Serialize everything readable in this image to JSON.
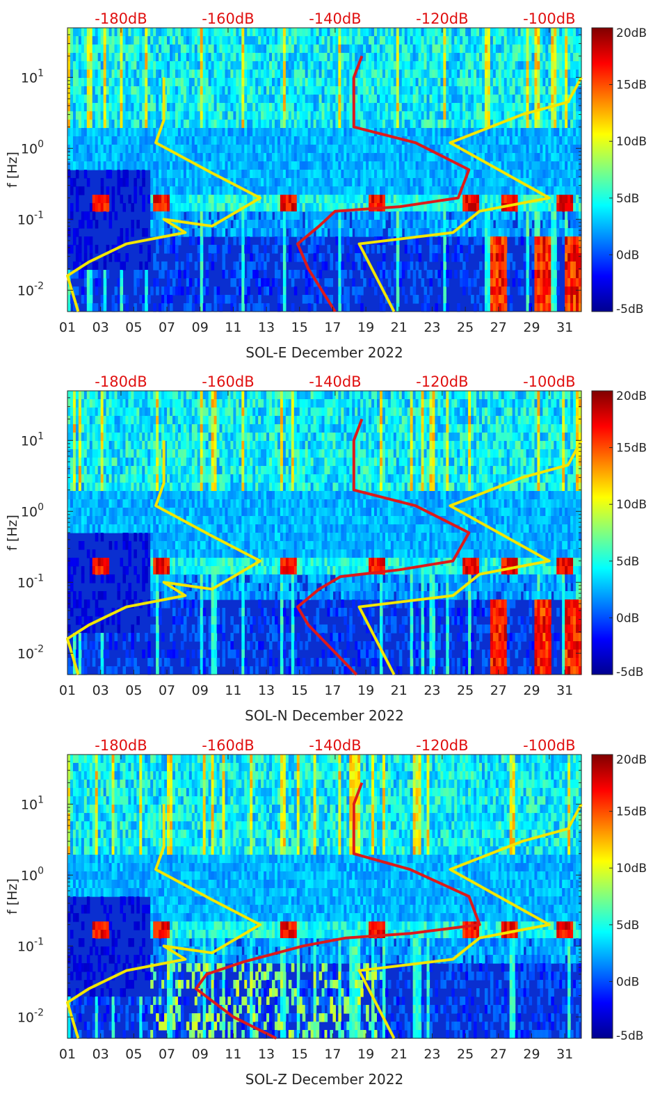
{
  "colors": {
    "noise_model_line": "#f2e600",
    "psd_line": "#dd1a1a",
    "top_axis_text": "#e01010",
    "colormap": [
      "#00008f",
      "#0000ff",
      "#0080ff",
      "#00ffff",
      "#80ff80",
      "#ffff00",
      "#ff8000",
      "#ff0000",
      "#800000"
    ]
  },
  "chart_data": [
    {
      "type": "heatmap",
      "panel": "SOL-E",
      "xlabel": "SOL-E December 2022",
      "ylabel": "f [Hz]",
      "x_range_days": [
        1,
        32
      ],
      "x_ticks": [
        "01",
        "03",
        "05",
        "07",
        "09",
        "11",
        "13",
        "15",
        "17",
        "19",
        "21",
        "23",
        "25",
        "27",
        "29",
        "31"
      ],
      "y_scale": "log",
      "ylim_hz": [
        0.005,
        50
      ],
      "y_ticks": [
        "10-2",
        "10-1",
        "100",
        "101"
      ],
      "top_axis": {
        "ticks": [
          "-180dB",
          "-160dB",
          "-140dB",
          "-120dB",
          "-100dB"
        ],
        "range_db": [
          -190,
          -94
        ]
      },
      "colorbar": {
        "range_db": [
          -5,
          20
        ],
        "ticks": [
          "-5dB",
          "0dB",
          "5dB",
          "10dB",
          "15dB",
          "20dB"
        ]
      },
      "lines": {
        "noise_model_low_db": [
          [
            -172,
            10
          ],
          [
            -172,
            2.5
          ],
          [
            -173.5,
            1.2
          ],
          [
            -163,
            0.45
          ],
          [
            -154,
            0.2
          ],
          [
            -163,
            0.08
          ],
          [
            -172,
            0.1
          ],
          [
            -168,
            0.065
          ],
          [
            -179,
            0.045
          ],
          [
            -186,
            0.025
          ],
          [
            -190,
            0.016
          ],
          [
            -188,
            0.005
          ]
        ],
        "noise_model_high_db": [
          [
            -94,
            10
          ],
          [
            -96.5,
            4.5
          ],
          [
            -105,
            3
          ],
          [
            -118.5,
            1.2
          ],
          [
            -100,
            0.2
          ],
          [
            -113,
            0.13
          ],
          [
            -118,
            0.065
          ],
          [
            -135.5,
            0.045
          ],
          [
            -129,
            0.005
          ]
        ],
        "psd_db": [
          [
            -135,
            20
          ],
          [
            -136.5,
            10
          ],
          [
            -136.5,
            2
          ],
          [
            -125,
            1.2
          ],
          [
            -115,
            0.5
          ],
          [
            -117,
            0.2
          ],
          [
            -128,
            0.15
          ],
          [
            -140,
            0.13
          ],
          [
            -143,
            0.08
          ],
          [
            -147,
            0.045
          ],
          [
            -145,
            0.02
          ],
          [
            -140,
            0.005
          ]
        ]
      }
    },
    {
      "type": "heatmap",
      "panel": "SOL-N",
      "xlabel": "SOL-N December 2022",
      "ylabel": "f [Hz]",
      "x_range_days": [
        1,
        32
      ],
      "x_ticks": [
        "01",
        "03",
        "05",
        "07",
        "09",
        "11",
        "13",
        "15",
        "17",
        "19",
        "21",
        "23",
        "25",
        "27",
        "29",
        "31"
      ],
      "y_scale": "log",
      "ylim_hz": [
        0.005,
        50
      ],
      "y_ticks": [
        "10-2",
        "10-1",
        "100",
        "101"
      ],
      "top_axis": {
        "ticks": [
          "-180dB",
          "-160dB",
          "-140dB",
          "-120dB",
          "-100dB"
        ],
        "range_db": [
          -190,
          -94
        ]
      },
      "colorbar": {
        "range_db": [
          -5,
          20
        ],
        "ticks": [
          "-5dB",
          "0dB",
          "5dB",
          "10dB",
          "15dB",
          "20dB"
        ]
      },
      "lines": {
        "noise_model_low_db": [
          [
            -172,
            10
          ],
          [
            -172,
            2.5
          ],
          [
            -173.5,
            1.2
          ],
          [
            -163,
            0.45
          ],
          [
            -154,
            0.2
          ],
          [
            -163,
            0.08
          ],
          [
            -172,
            0.1
          ],
          [
            -168,
            0.065
          ],
          [
            -179,
            0.045
          ],
          [
            -186,
            0.025
          ],
          [
            -190,
            0.016
          ],
          [
            -188,
            0.005
          ]
        ],
        "noise_model_high_db": [
          [
            -94,
            10
          ],
          [
            -96.5,
            4.5
          ],
          [
            -105,
            3
          ],
          [
            -118.5,
            1.2
          ],
          [
            -100,
            0.2
          ],
          [
            -113,
            0.13
          ],
          [
            -118,
            0.065
          ],
          [
            -135.5,
            0.045
          ],
          [
            -129,
            0.005
          ]
        ],
        "psd_db": [
          [
            -135,
            20
          ],
          [
            -136.5,
            10
          ],
          [
            -136.5,
            2
          ],
          [
            -125,
            1.2
          ],
          [
            -115,
            0.5
          ],
          [
            -118,
            0.2
          ],
          [
            -128,
            0.15
          ],
          [
            -139,
            0.12
          ],
          [
            -143,
            0.08
          ],
          [
            -147,
            0.045
          ],
          [
            -145,
            0.025
          ],
          [
            -136,
            0.005
          ]
        ]
      }
    },
    {
      "type": "heatmap",
      "panel": "SOL-Z",
      "xlabel": "SOL-Z December 2022",
      "ylabel": "f [Hz]",
      "x_range_days": [
        1,
        32
      ],
      "x_ticks": [
        "01",
        "03",
        "05",
        "07",
        "09",
        "11",
        "13",
        "15",
        "17",
        "19",
        "21",
        "23",
        "25",
        "27",
        "29",
        "31"
      ],
      "y_scale": "log",
      "ylim_hz": [
        0.005,
        50
      ],
      "y_ticks": [
        "10-2",
        "10-1",
        "100",
        "101"
      ],
      "top_axis": {
        "ticks": [
          "-180dB",
          "-160dB",
          "-140dB",
          "-120dB",
          "-100dB"
        ],
        "range_db": [
          -190,
          -94
        ]
      },
      "colorbar": {
        "range_db": [
          -5,
          20
        ],
        "ticks": [
          "-5dB",
          "0dB",
          "5dB",
          "10dB",
          "15dB",
          "20dB"
        ]
      },
      "lines": {
        "noise_model_low_db": [
          [
            -172,
            10
          ],
          [
            -172,
            2.5
          ],
          [
            -173.5,
            1.2
          ],
          [
            -163,
            0.45
          ],
          [
            -154,
            0.2
          ],
          [
            -163,
            0.08
          ],
          [
            -172,
            0.1
          ],
          [
            -168,
            0.065
          ],
          [
            -179,
            0.045
          ],
          [
            -186,
            0.025
          ],
          [
            -190,
            0.016
          ],
          [
            -188,
            0.005
          ]
        ],
        "noise_model_high_db": [
          [
            -94,
            10
          ],
          [
            -96.5,
            4.5
          ],
          [
            -105,
            3
          ],
          [
            -118.5,
            1.2
          ],
          [
            -100,
            0.2
          ],
          [
            -113,
            0.13
          ],
          [
            -118,
            0.065
          ],
          [
            -135.5,
            0.045
          ],
          [
            -129,
            0.005
          ]
        ],
        "psd_db": [
          [
            -135,
            20
          ],
          [
            -136.5,
            10
          ],
          [
            -136.5,
            2
          ],
          [
            -126,
            1.2
          ],
          [
            -115,
            0.5
          ],
          [
            -113,
            0.2
          ],
          [
            -126,
            0.15
          ],
          [
            -138,
            0.13
          ],
          [
            -146,
            0.1
          ],
          [
            -157,
            0.06
          ],
          [
            -164,
            0.04
          ],
          [
            -166,
            0.025
          ],
          [
            -159,
            0.01
          ],
          [
            -151,
            0.005
          ]
        ]
      }
    }
  ]
}
